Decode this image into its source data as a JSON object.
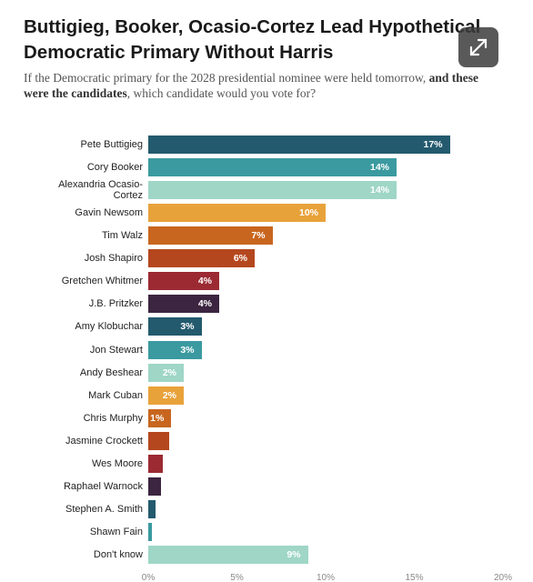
{
  "chart_data": {
    "type": "bar",
    "title": "Buttigieg, Booker, Ocasio-Cortez Lead Hypothetical Democratic Primary Without Harris",
    "subtitle": [
      "If the Democratic primary for the 2028 presidential nominee were held tomorrow, ",
      "and these were the candidates",
      ", which candidate would you vote for?"
    ],
    "categories": [
      "Pete Buttigieg",
      "Cory Booker",
      "Alexandria Ocasio-Cortez",
      "Gavin Newsom",
      "Tim Walz",
      "Josh Shapiro",
      "Gretchen Whitmer",
      "J.B. Pritzker",
      "Amy Klobuchar",
      "Jon Stewart",
      "Andy Beshear",
      "Mark Cuban",
      "Chris Murphy",
      "Jasmine Crockett",
      "Wes Moore",
      "Raphael Warnock",
      "Stephen A. Smith",
      "Shawn Fain",
      "Don't know"
    ],
    "values": [
      17,
      14,
      14,
      10,
      7,
      6,
      4,
      4,
      3,
      3,
      2,
      2,
      1.3,
      1.2,
      0.8,
      0.7,
      0.4,
      0.2,
      9
    ],
    "value_labels": [
      "17%",
      "14%",
      "14%",
      "10%",
      "7%",
      "6%",
      "4%",
      "4%",
      "3%",
      "3%",
      "2%",
      "2%",
      "1%",
      null,
      null,
      null,
      null,
      null,
      "9%"
    ],
    "colors": [
      "#235a6e",
      "#3a9aa0",
      "#9fd6c6",
      "#e8a23a",
      "#c8661f",
      "#b5471f",
      "#9b2a33",
      "#3b2540",
      "#235a6e",
      "#3a9aa0",
      "#9fd6c6",
      "#e8a23a",
      "#c8661f",
      "#b5471f",
      "#9b2a33",
      "#3b2540",
      "#235a6e",
      "#3a9aa0",
      "#9fd6c6"
    ],
    "xlim": [
      0,
      20
    ],
    "xticks": [
      {
        "value": 0,
        "label": "0%"
      },
      {
        "value": 5,
        "label": "5%"
      },
      {
        "value": 10,
        "label": "10%"
      },
      {
        "value": 15,
        "label": "15%"
      },
      {
        "value": 20,
        "label": "20%"
      }
    ],
    "grid": false
  }
}
